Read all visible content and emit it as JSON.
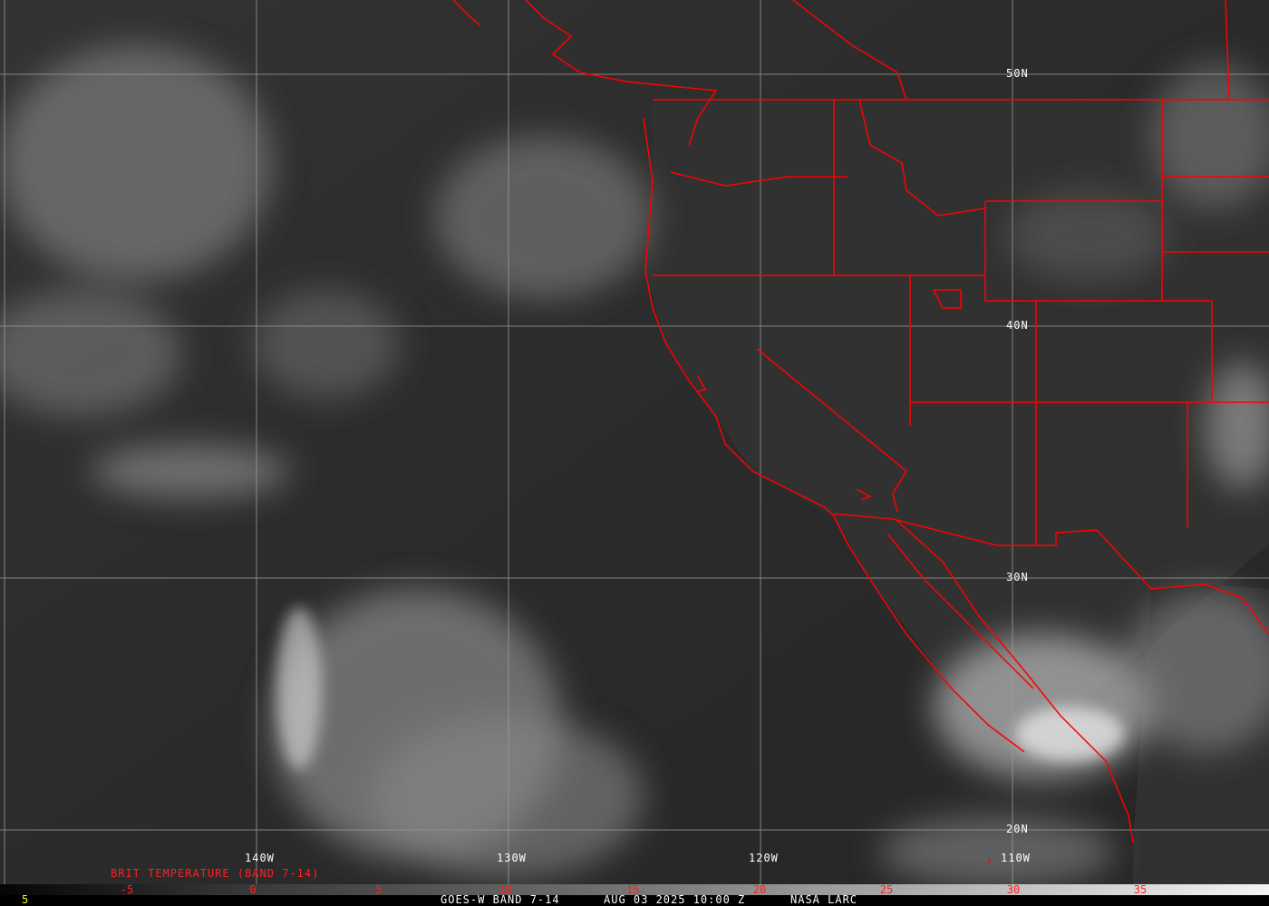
{
  "title": "GOES-W BAND 7-14",
  "date_time": "AUG 03 2025 10:00 Z",
  "source": "NASA LARC",
  "frame_number": "5",
  "legend_title": "BRIT TEMPERATURE (BAND 7-14)",
  "colorbar_ticks": [
    "-5",
    "0",
    "5",
    "10",
    "15",
    "20",
    "25",
    "30",
    "35"
  ],
  "latitude_labels": [
    "50N",
    "40N",
    "30N",
    "20N"
  ],
  "longitude_labels": [
    "140W",
    "130W",
    "120W",
    "110W"
  ],
  "colors": {
    "borders": "#ff0000",
    "grid": "#9a9a9a",
    "labels": "#ffffff",
    "legend": "#ff2020",
    "frame_number": "#ffff00"
  }
}
